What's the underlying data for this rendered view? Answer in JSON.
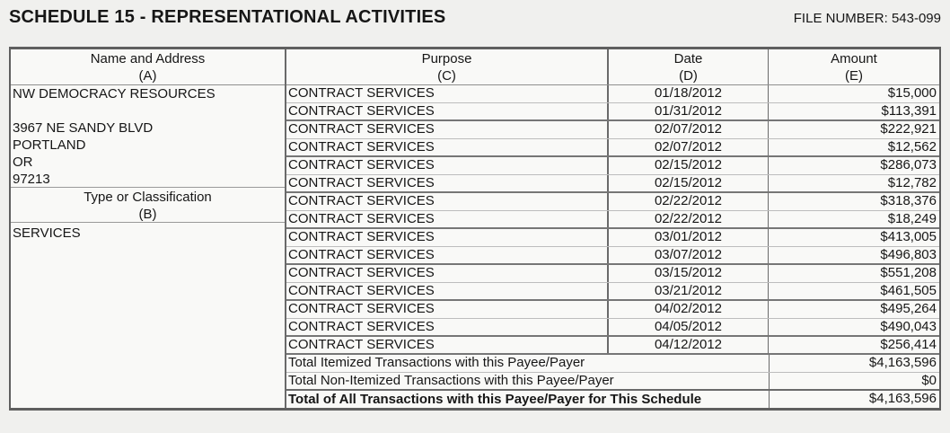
{
  "header": {
    "title": "SCHEDULE 15 - REPRESENTATIONAL ACTIVITIES",
    "file_number": "FILE NUMBER: 543-099"
  },
  "table": {
    "columns": {
      "name_address": {
        "label": "Name and Address",
        "sub": "(A)"
      },
      "purpose": {
        "label": "Purpose",
        "sub": "(C)"
      },
      "date": {
        "label": "Date",
        "sub": "(D)"
      },
      "amount": {
        "label": "Amount",
        "sub": "(E)"
      }
    },
    "payee": {
      "name": "NW DEMOCRACY RESOURCES",
      "address_lines": [
        "3967 NE SANDY BLVD",
        "PORTLAND",
        "OR",
        "97213"
      ]
    },
    "classification": {
      "label": "Type or Classification",
      "sub": "(B)",
      "value": "SERVICES"
    },
    "transactions": [
      {
        "purpose": "CONTRACT SERVICES",
        "date": "01/18/2012",
        "amount": "$15,000"
      },
      {
        "purpose": "CONTRACT SERVICES",
        "date": "01/31/2012",
        "amount": "$113,391"
      },
      {
        "purpose": "CONTRACT SERVICES",
        "date": "02/07/2012",
        "amount": "$222,921"
      },
      {
        "purpose": "CONTRACT SERVICES",
        "date": "02/07/2012",
        "amount": "$12,562"
      },
      {
        "purpose": "CONTRACT SERVICES",
        "date": "02/15/2012",
        "amount": "$286,073"
      },
      {
        "purpose": "CONTRACT SERVICES",
        "date": "02/15/2012",
        "amount": "$12,782"
      },
      {
        "purpose": "CONTRACT SERVICES",
        "date": "02/22/2012",
        "amount": "$318,376"
      },
      {
        "purpose": "CONTRACT SERVICES",
        "date": "02/22/2012",
        "amount": "$18,249"
      },
      {
        "purpose": "CONTRACT SERVICES",
        "date": "03/01/2012",
        "amount": "$413,005"
      },
      {
        "purpose": "CONTRACT SERVICES",
        "date": "03/07/2012",
        "amount": "$496,803"
      },
      {
        "purpose": "CONTRACT SERVICES",
        "date": "03/15/2012",
        "amount": "$551,208"
      },
      {
        "purpose": "CONTRACT SERVICES",
        "date": "03/21/2012",
        "amount": "$461,505"
      },
      {
        "purpose": "CONTRACT SERVICES",
        "date": "04/02/2012",
        "amount": "$495,264"
      },
      {
        "purpose": "CONTRACT SERVICES",
        "date": "04/05/2012",
        "amount": "$490,043"
      },
      {
        "purpose": "CONTRACT SERVICES",
        "date": "04/12/2012",
        "amount": "$256,414"
      }
    ],
    "totals": [
      {
        "label": "Total Itemized Transactions with this Payee/Payer",
        "amount": "$4,163,596"
      },
      {
        "label": "Total Non-Itemized Transactions with this Payee/Payer",
        "amount": "$0"
      },
      {
        "label": "Total of All Transactions with this Payee/Payer for This Schedule",
        "amount": "$4,163,596"
      }
    ]
  },
  "colors": {
    "page_background": "#f0f0ee",
    "cell_background": "#f9f9f7",
    "border_dark": "#5f5f5f",
    "border_medium": "#767676",
    "border_light": "#bdbdbd",
    "text": "#161616"
  }
}
